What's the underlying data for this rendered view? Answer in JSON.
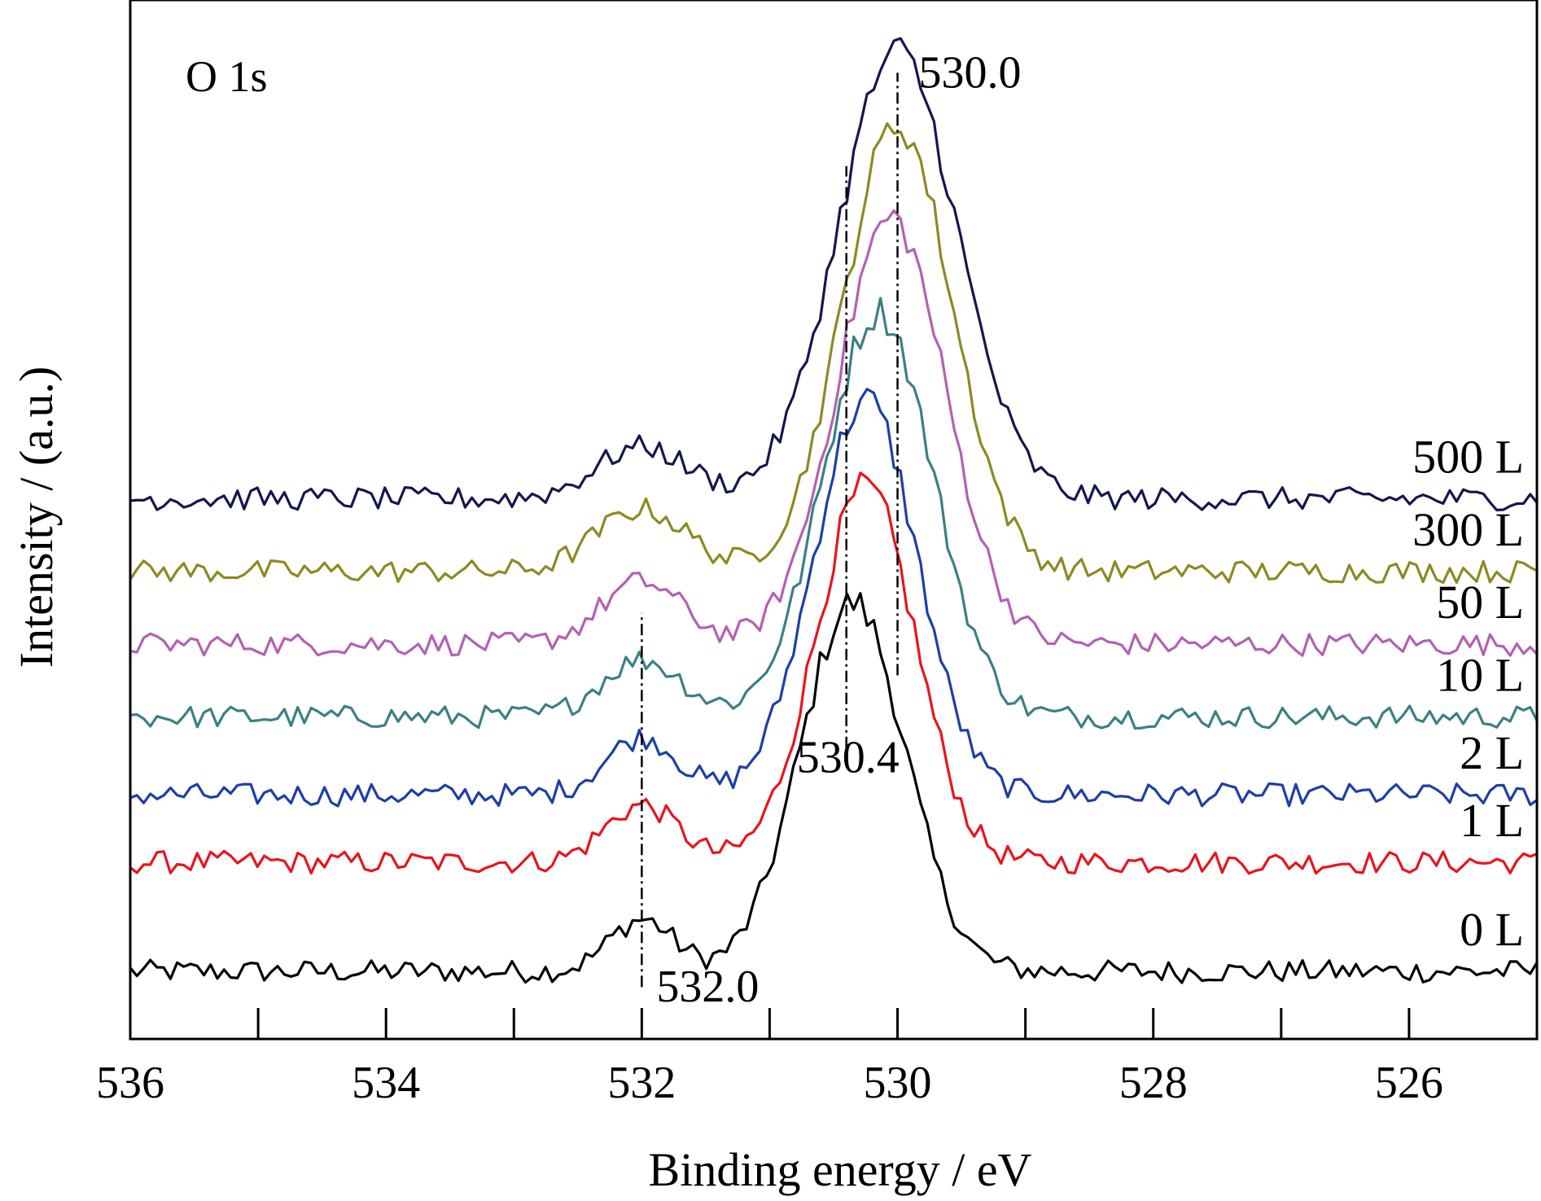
{
  "chart_data": {
    "type": "line",
    "title": "",
    "annotation_title": "O 1s",
    "xlabel": "Binding energy / eV",
    "ylabel": "Intensity / (a.u.)",
    "x_reversed": true,
    "xlim": [
      536,
      525
    ],
    "ylim": [
      0,
      1
    ],
    "y_ticks_shown": false,
    "grid": false,
    "major_ticks": [
      536,
      534,
      532,
      530,
      528,
      526
    ],
    "major_tick_labels": [
      "536",
      "534",
      "532",
      "530",
      "528",
      "526"
    ],
    "minor_ticks": [
      535,
      533,
      531,
      529,
      527
    ],
    "reference_lines": [
      {
        "x": 532.0,
        "label": "532.0",
        "y_from": 0.05,
        "y_to": 0.41
      },
      {
        "x": 530.4,
        "label": "530.4",
        "y_from": 0.28,
        "y_to": 0.84
      },
      {
        "x": 530.0,
        "label": "530.0",
        "y_from": 0.35,
        "y_to": 0.93
      }
    ],
    "series": [
      {
        "name": "0 L",
        "color": "#000000",
        "baseline": 0.065,
        "amplitude": 0.355,
        "center": 530.35,
        "width": 0.58,
        "shoulder_center": 532.0,
        "shoulder_amp": 0.05,
        "shoulder_width": 0.35
      },
      {
        "name": "1 L",
        "color": "#e8141c",
        "baseline": 0.17,
        "amplitude": 0.36,
        "center": 530.25,
        "width": 0.55,
        "shoulder_center": 532.0,
        "shoulder_amp": 0.055,
        "shoulder_width": 0.4
      },
      {
        "name": "2 L",
        "color": "#1c3fa8",
        "baseline": 0.235,
        "amplitude": 0.38,
        "center": 530.25,
        "width": 0.57,
        "shoulder_center": 532.0,
        "shoulder_amp": 0.055,
        "shoulder_width": 0.4
      },
      {
        "name": "10 L",
        "color": "#3a8086",
        "baseline": 0.31,
        "amplitude": 0.39,
        "center": 530.15,
        "width": 0.6,
        "shoulder_center": 532.0,
        "shoulder_amp": 0.055,
        "shoulder_width": 0.45
      },
      {
        "name": "50 L",
        "color": "#b460b4",
        "baseline": 0.38,
        "amplitude": 0.41,
        "center": 530.05,
        "width": 0.6,
        "shoulder_center": 532.0,
        "shoulder_amp": 0.06,
        "shoulder_width": 0.45
      },
      {
        "name": "300 L",
        "color": "#8c8a22",
        "baseline": 0.45,
        "amplitude": 0.43,
        "center": 530.0,
        "width": 0.6,
        "shoulder_center": 532.0,
        "shoulder_amp": 0.06,
        "shoulder_width": 0.5
      },
      {
        "name": "500 L",
        "color": "#141650",
        "baseline": 0.52,
        "amplitude": 0.43,
        "center": 530.0,
        "width": 0.66,
        "shoulder_center": 532.0,
        "shoulder_amp": 0.05,
        "shoulder_width": 0.5
      }
    ],
    "noise": 0.011,
    "samples": 210
  }
}
